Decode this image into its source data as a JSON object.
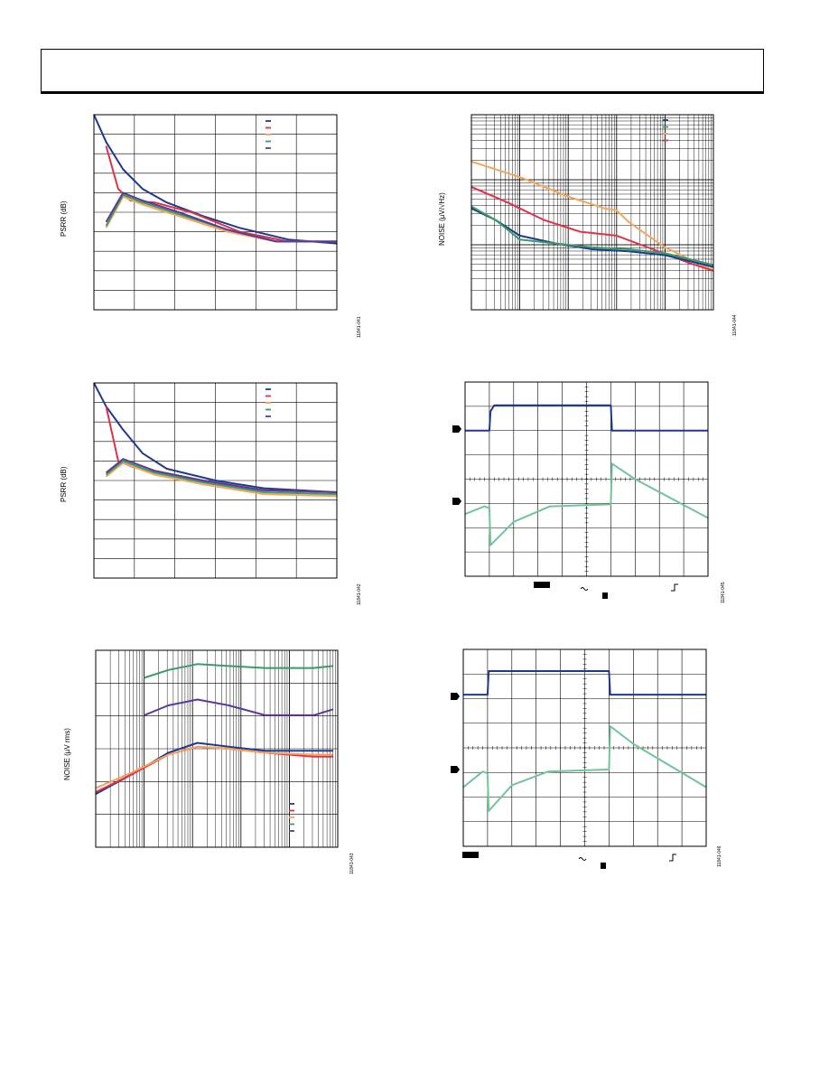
{
  "colors": {
    "navy": "#1f3a8a",
    "red": "#e0304a",
    "orange": "#f5a55a",
    "green": "#3a9a6a",
    "purple": "#5b3a9a",
    "teal": "#72c49a"
  },
  "figures": [
    {
      "ylabel": "PSRR (dB)",
      "fignum": "11841-041"
    },
    {
      "ylabel": "PSRR (dB)",
      "fignum": "11841-042"
    },
    {
      "ylabel": "NOISE (µV rms)",
      "fignum": "11841-043"
    },
    {
      "ylabel": "NOISE (µV/√Hz)",
      "fignum": "11841-044"
    },
    {
      "fignum": "11841-045"
    },
    {
      "fignum": "11841-046"
    }
  ],
  "chart_data": [
    {
      "type": "line",
      "title": "",
      "ylabel": "PSRR (dB)",
      "xscale": "log",
      "grid": true,
      "legend": "top-right",
      "series": [
        {
          "color": "navy",
          "values": [
            [
              0,
              1.0
            ],
            [
              0.05,
              0.86
            ],
            [
              0.12,
              0.72
            ],
            [
              0.2,
              0.62
            ],
            [
              0.3,
              0.55
            ],
            [
              0.45,
              0.48
            ],
            [
              0.6,
              0.42
            ],
            [
              0.8,
              0.36
            ],
            [
              1,
              0.34
            ]
          ]
        },
        {
          "color": "red",
          "values": [
            [
              0.05,
              0.84
            ],
            [
              0.1,
              0.62
            ],
            [
              0.15,
              0.56
            ],
            [
              0.25,
              0.55
            ],
            [
              0.4,
              0.5
            ],
            [
              0.6,
              0.4
            ],
            [
              0.8,
              0.35
            ],
            [
              1,
              0.35
            ]
          ]
        },
        {
          "color": "orange",
          "values": [
            [
              0.05,
              0.42
            ],
            [
              0.12,
              0.58
            ],
            [
              0.2,
              0.54
            ],
            [
              0.35,
              0.48
            ],
            [
              0.55,
              0.4
            ],
            [
              0.75,
              0.35
            ],
            [
              1,
              0.35
            ]
          ]
        },
        {
          "color": "green",
          "values": [
            [
              0.05,
              0.43
            ],
            [
              0.12,
              0.59
            ],
            [
              0.2,
              0.55
            ],
            [
              0.35,
              0.49
            ],
            [
              0.55,
              0.41
            ],
            [
              0.75,
              0.35
            ],
            [
              1,
              0.35
            ]
          ]
        },
        {
          "color": "purple",
          "values": [
            [
              0.05,
              0.45
            ],
            [
              0.12,
              0.6
            ],
            [
              0.2,
              0.56
            ],
            [
              0.35,
              0.5
            ],
            [
              0.55,
              0.41
            ],
            [
              0.75,
              0.35
            ],
            [
              1,
              0.35
            ]
          ]
        }
      ]
    },
    {
      "type": "line",
      "title": "",
      "ylabel": "PSRR (dB)",
      "xscale": "log",
      "grid": true,
      "legend": "top-right",
      "series": [
        {
          "color": "navy",
          "values": [
            [
              0,
              1.0
            ],
            [
              0.05,
              0.88
            ],
            [
              0.12,
              0.76
            ],
            [
              0.2,
              0.64
            ],
            [
              0.3,
              0.56
            ],
            [
              0.5,
              0.5
            ],
            [
              0.7,
              0.46
            ],
            [
              1,
              0.44
            ]
          ]
        },
        {
          "color": "red",
          "values": [
            [
              0.05,
              0.88
            ],
            [
              0.1,
              0.6
            ],
            [
              0.16,
              0.57
            ],
            [
              0.3,
              0.53
            ],
            [
              0.5,
              0.48
            ],
            [
              0.7,
              0.45
            ],
            [
              1,
              0.44
            ]
          ]
        },
        {
          "color": "orange",
          "values": [
            [
              0.05,
              0.52
            ],
            [
              0.12,
              0.59
            ],
            [
              0.25,
              0.53
            ],
            [
              0.45,
              0.48
            ],
            [
              0.7,
              0.43
            ],
            [
              1,
              0.42
            ]
          ]
        },
        {
          "color": "green",
          "values": [
            [
              0.05,
              0.53
            ],
            [
              0.12,
              0.6
            ],
            [
              0.25,
              0.54
            ],
            [
              0.45,
              0.49
            ],
            [
              0.7,
              0.44
            ],
            [
              1,
              0.43
            ]
          ]
        },
        {
          "color": "purple",
          "values": [
            [
              0.05,
              0.54
            ],
            [
              0.12,
              0.61
            ],
            [
              0.25,
              0.55
            ],
            [
              0.45,
              0.5
            ],
            [
              0.7,
              0.45
            ],
            [
              1,
              0.44
            ]
          ]
        }
      ]
    },
    {
      "type": "line",
      "title": "",
      "ylabel": "NOISE (µV rms)",
      "xscale": "log",
      "grid": true,
      "legend": "bottom-right",
      "series": [
        {
          "color": "navy",
          "values": [
            [
              0,
              0.27
            ],
            [
              0.15,
              0.37
            ],
            [
              0.3,
              0.48
            ],
            [
              0.42,
              0.53
            ],
            [
              0.55,
              0.51
            ],
            [
              0.7,
              0.49
            ],
            [
              0.9,
              0.49
            ],
            [
              0.98,
              0.49
            ]
          ]
        },
        {
          "color": "red",
          "values": [
            [
              0,
              0.28
            ],
            [
              0.15,
              0.37
            ],
            [
              0.3,
              0.47
            ],
            [
              0.42,
              0.51
            ],
            [
              0.55,
              0.5
            ],
            [
              0.7,
              0.48
            ],
            [
              0.9,
              0.46
            ],
            [
              0.98,
              0.46
            ]
          ]
        },
        {
          "color": "orange",
          "values": [
            [
              0,
              0.3
            ],
            [
              0.15,
              0.38
            ],
            [
              0.3,
              0.47
            ],
            [
              0.42,
              0.51
            ],
            [
              0.55,
              0.5
            ],
            [
              0.7,
              0.48
            ],
            [
              0.9,
              0.47
            ],
            [
              0.98,
              0.47
            ]
          ]
        },
        {
          "color": "green",
          "values": [
            [
              0.2,
              0.86
            ],
            [
              0.3,
              0.9
            ],
            [
              0.42,
              0.93
            ],
            [
              0.55,
              0.92
            ],
            [
              0.7,
              0.91
            ],
            [
              0.9,
              0.91
            ],
            [
              0.98,
              0.92
            ]
          ]
        },
        {
          "color": "purple",
          "values": [
            [
              0.2,
              0.67
            ],
            [
              0.3,
              0.72
            ],
            [
              0.42,
              0.75
            ],
            [
              0.55,
              0.72
            ],
            [
              0.7,
              0.67
            ],
            [
              0.9,
              0.67
            ],
            [
              0.98,
              0.7
            ]
          ]
        }
      ]
    },
    {
      "type": "line",
      "title": "",
      "ylabel": "NOISE (µV/√Hz)",
      "xscale": "log",
      "yscale": "log",
      "grid": true,
      "legend": "top-right",
      "series": [
        {
          "color": "orange",
          "values": [
            [
              0,
              0.76
            ],
            [
              0.2,
              0.68
            ],
            [
              0.4,
              0.58
            ],
            [
              0.55,
              0.52
            ],
            [
              0.6,
              0.51
            ],
            [
              0.65,
              0.45
            ],
            [
              0.8,
              0.32
            ],
            [
              1,
              0.2
            ]
          ]
        },
        {
          "color": "red",
          "values": [
            [
              0,
              0.63
            ],
            [
              0.15,
              0.55
            ],
            [
              0.3,
              0.46
            ],
            [
              0.45,
              0.4
            ],
            [
              0.6,
              0.38
            ],
            [
              0.75,
              0.31
            ],
            [
              0.9,
              0.24
            ],
            [
              1,
              0.2
            ]
          ]
        },
        {
          "color": "navy",
          "values": [
            [
              0,
              0.52
            ],
            [
              0.1,
              0.46
            ],
            [
              0.2,
              0.38
            ],
            [
              0.35,
              0.34
            ],
            [
              0.5,
              0.31
            ],
            [
              0.65,
              0.3
            ],
            [
              0.8,
              0.28
            ],
            [
              1,
              0.22
            ]
          ]
        },
        {
          "color": "green",
          "values": [
            [
              0,
              0.53
            ],
            [
              0.1,
              0.46
            ],
            [
              0.2,
              0.36
            ],
            [
              0.35,
              0.34
            ],
            [
              0.5,
              0.32
            ],
            [
              0.65,
              0.31
            ],
            [
              0.8,
              0.29
            ],
            [
              1,
              0.23
            ]
          ]
        }
      ]
    },
    {
      "type": "line",
      "title": "",
      "grid": true,
      "series": [
        {
          "color": "navy",
          "values": [
            [
              0,
              0.75
            ],
            [
              0.1,
              0.75
            ],
            [
              0.105,
              0.85
            ],
            [
              0.12,
              0.88
            ],
            [
              0.6,
              0.88
            ],
            [
              0.605,
              0.75
            ],
            [
              1,
              0.75
            ]
          ]
        },
        {
          "color": "teal",
          "values": [
            [
              0,
              0.32
            ],
            [
              0.08,
              0.36
            ],
            [
              0.1,
              0.35
            ],
            [
              0.105,
              0.16
            ],
            [
              0.2,
              0.28
            ],
            [
              0.35,
              0.36
            ],
            [
              0.6,
              0.37
            ],
            [
              0.605,
              0.58
            ],
            [
              0.7,
              0.5
            ],
            [
              1,
              0.3
            ]
          ]
        }
      ]
    },
    {
      "type": "line",
      "title": "",
      "grid": true,
      "series": [
        {
          "color": "navy",
          "values": [
            [
              0,
              0.77
            ],
            [
              0.1,
              0.77
            ],
            [
              0.105,
              0.89
            ],
            [
              0.6,
              0.89
            ],
            [
              0.605,
              0.77
            ],
            [
              1,
              0.77
            ]
          ]
        },
        {
          "color": "teal",
          "values": [
            [
              0,
              0.3
            ],
            [
              0.08,
              0.38
            ],
            [
              0.1,
              0.37
            ],
            [
              0.105,
              0.18
            ],
            [
              0.2,
              0.31
            ],
            [
              0.35,
              0.38
            ],
            [
              0.6,
              0.39
            ],
            [
              0.605,
              0.61
            ],
            [
              0.7,
              0.52
            ],
            [
              1,
              0.3
            ]
          ]
        }
      ]
    }
  ]
}
